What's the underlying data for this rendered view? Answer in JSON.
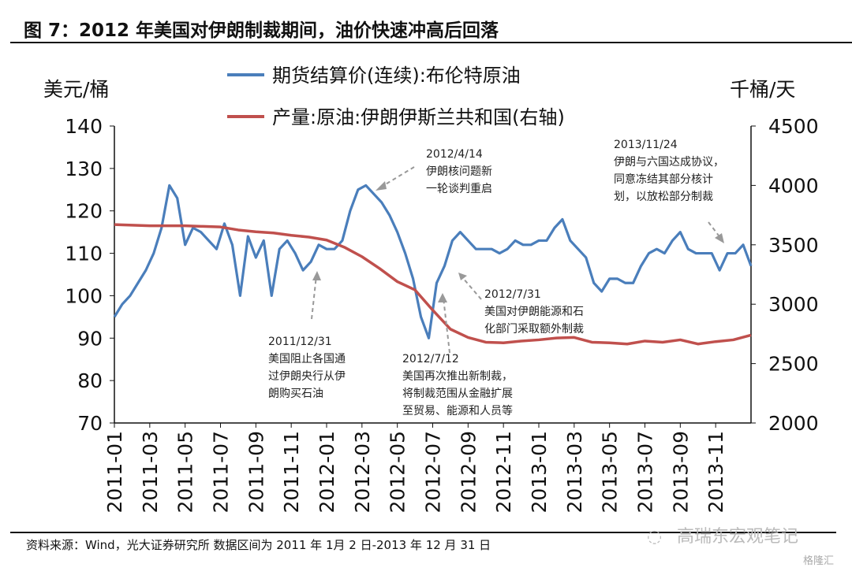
{
  "title": "图 7：2012 年美国对伊朗制裁期间，油价快速冲高后回落",
  "source": "资料来源：Wind，光大证券研究所  数据区间为 2011 年 1月 2 日-2013 年 12 月 31 日",
  "watermark": {
    "wechat": "高瑞东宏观笔记",
    "brand": "格隆汇"
  },
  "colors": {
    "brent": "#4a7ebb",
    "production": "#c0504d"
  },
  "chart_data": {
    "type": "line",
    "title": "图 7：2012 年美国对伊朗制裁期间，油价快速冲高后回落",
    "ylabel": "美元/桶",
    "ylabel_right": "千桶/天",
    "ylim": [
      70,
      140
    ],
    "ylim_right": [
      2000,
      4500
    ],
    "yticks": [
      "140",
      "130",
      "120",
      "110",
      "100",
      "90",
      "80",
      "70"
    ],
    "yticks_right": [
      "4500",
      "4000",
      "3500",
      "3000",
      "2500",
      "2000"
    ],
    "date_range": [
      "2011-01-02",
      "2013-12-31"
    ],
    "xticks": [
      "2011-01",
      "2011-03",
      "2011-05",
      "2011-07",
      "2011-09",
      "2011-11",
      "2012-01",
      "2012-03",
      "2012-05",
      "2012-07",
      "2012-09",
      "2012-11",
      "2013-01",
      "2013-03",
      "2013-05",
      "2013-07",
      "2013-09",
      "2013-11"
    ],
    "legend": [
      "期货结算价(连续):布伦特原油",
      "产量:原油:伊朗伊斯兰共和国(右轴)"
    ],
    "legend_position": "top",
    "series": [
      {
        "name": "期货结算价(连续):布伦特原油",
        "axis": "left",
        "spacing": "even",
        "values": [
          95,
          98,
          100,
          103,
          106,
          110,
          116,
          126,
          123,
          112,
          116,
          115,
          113,
          111,
          117,
          112,
          100,
          114,
          109,
          113,
          100,
          111,
          113,
          110,
          106,
          108,
          112,
          111,
          111,
          113,
          120,
          125,
          126,
          124,
          122,
          119,
          115,
          110,
          104,
          95,
          90,
          103,
          107,
          113,
          115,
          113,
          111,
          111,
          111,
          110,
          111,
          113,
          112,
          112,
          113,
          113,
          116,
          118,
          113,
          111,
          109,
          103,
          101,
          104,
          104,
          103,
          103,
          107,
          110,
          111,
          110,
          113,
          115,
          111,
          110,
          110,
          110,
          106,
          110,
          110,
          112,
          107
        ]
      },
      {
        "name": "产量:原油:伊朗伊斯兰共和国(右轴)",
        "axis": "right",
        "spacing": "monthly",
        "values": [
          3670,
          3665,
          3660,
          3660,
          3660,
          3655,
          3650,
          3625,
          3610,
          3600,
          3580,
          3565,
          3540,
          3480,
          3400,
          3300,
          3190,
          3120,
          2950,
          2790,
          2720,
          2680,
          2675,
          2690,
          2700,
          2715,
          2720,
          2680,
          2675,
          2665,
          2690,
          2680,
          2700,
          2665,
          2685,
          2700,
          2740
        ]
      }
    ],
    "annotations": [
      {
        "lines": [
          "2012/4/14",
          "伊朗核问题新",
          "一轮谈判重启"
        ]
      },
      {
        "lines": [
          "2013/11/24",
          "伊朗与六国达成协议，",
          "同意冻结其部分核计",
          "划，以放松部分制裁"
        ]
      },
      {
        "lines": [
          "2012/7/31",
          "美国对伊朗能源和石",
          "化部门采取额外制裁"
        ]
      },
      {
        "lines": [
          "2011/12/31",
          "美国阻止各国通",
          "过伊朗央行从伊",
          "朗购买石油"
        ]
      },
      {
        "lines": [
          "2012/7/12",
          "美国再次推出新制裁，",
          "将制裁范围从金融扩展",
          "至贸易、能源和人员等"
        ]
      }
    ]
  }
}
